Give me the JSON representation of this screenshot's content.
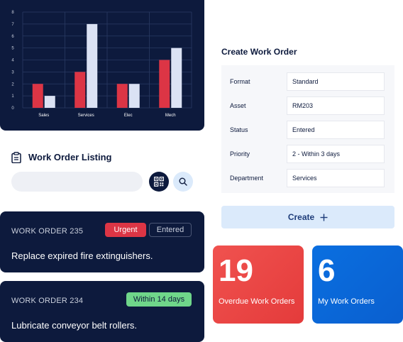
{
  "chart_data": {
    "type": "bar",
    "categories": [
      "Sales",
      "Services",
      "Elec",
      "Mech"
    ],
    "series": [
      {
        "values": [
          2,
          3,
          2,
          4
        ]
      },
      {
        "values": [
          1,
          7,
          2,
          5
        ]
      }
    ],
    "y_ticks": [
      "0",
      "1",
      "2",
      "3",
      "4",
      "5",
      "6",
      "7",
      "8"
    ],
    "ylim": [
      0,
      8
    ],
    "grid": true,
    "colors": [
      "#dc3545",
      "#dbe2f4"
    ]
  },
  "listing": {
    "title": "Work Order Listing",
    "search_placeholder": "",
    "icon": "clipboard-icon"
  },
  "work_orders": [
    {
      "id": "WORK ORDER 235",
      "description": "Replace expired fire extinguishers.",
      "badges": [
        "Urgent",
        "Entered"
      ]
    },
    {
      "id": "WORK ORDER 234",
      "description": "Lubricate conveyor belt rollers.",
      "badges": [
        "Within 14 days"
      ]
    }
  ],
  "form": {
    "title": "Create Work Order",
    "fields": [
      {
        "label": "Format",
        "value": "Standard"
      },
      {
        "label": "Asset",
        "value": "RM203"
      },
      {
        "label": "Status",
        "value": "Entered"
      },
      {
        "label": "Priority",
        "value": "2 - Within 3 days"
      },
      {
        "label": "Department",
        "value": "Services"
      }
    ],
    "create_label": "Create"
  },
  "tiles": [
    {
      "number": "19",
      "label": "Overdue Work Orders",
      "color_from": "#f0524f",
      "color_to": "#e43b3b"
    },
    {
      "number": "6",
      "label": "My Work Orders",
      "color_from": "#0a6fe0",
      "color_to": "#0a5fcf"
    }
  ]
}
